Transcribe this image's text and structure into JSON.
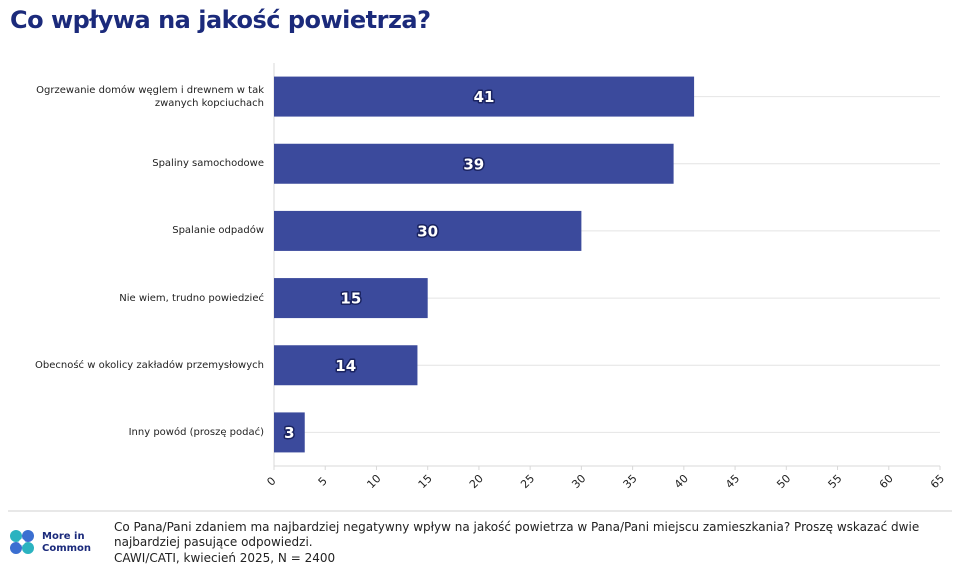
{
  "chart_data": {
    "type": "bar",
    "orientation": "horizontal",
    "title": "Co wpływa na jakość powietrza?",
    "categories": [
      "Ogrzewanie domów węglem i drewnem w tak zwanych kopciuchach",
      "Spaliny samochodowe",
      "Spalanie odpadów",
      "Nie wiem, trudno powiedzieć",
      "Obecność w okolicy zakładów przemysłowych",
      "Inny powód (proszę podać)"
    ],
    "values": [
      41,
      39,
      30,
      15,
      14,
      3
    ],
    "color": "#3b4a9c",
    "xlim": [
      0,
      65
    ],
    "xticks": [
      0,
      5,
      10,
      15,
      20,
      25,
      30,
      35,
      40,
      45,
      50,
      55,
      60,
      65
    ],
    "note": "Co Pana/Pani zdaniem ma najbardziej negatywny wpływ na jakość powietrza w Pana/Pani miejscu zamieszkania? Proszę wskazać dwie najbardziej pasujące odpowiedzi.",
    "source": "CAWI/CATI, kwiecień 2025, N = 2400",
    "logo": "More in Common"
  }
}
